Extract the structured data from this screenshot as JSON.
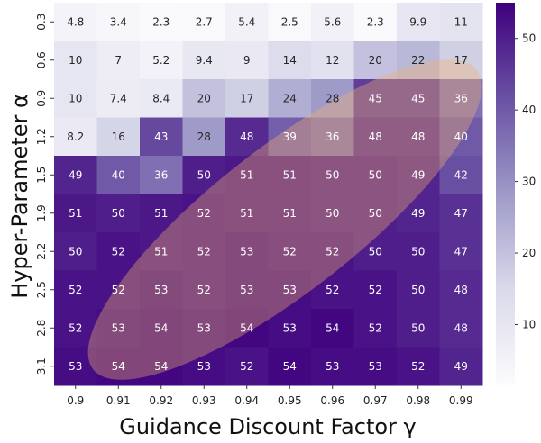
{
  "chart_data": {
    "type": "heatmap",
    "xlabel": "Guidance Discount Factor γ",
    "ylabel": "Hyper-Parameter α",
    "x": [
      "0.9",
      "0.91",
      "0.92",
      "0.93",
      "0.94",
      "0.95",
      "0.96",
      "0.97",
      "0.98",
      "0.99"
    ],
    "y": [
      "0.3",
      "0.6",
      "0.9",
      "1.2",
      "1.5",
      "1.9",
      "2.2",
      "2.5",
      "2.8",
      "3.1"
    ],
    "values": [
      [
        4.8,
        3.4,
        2.3,
        2.7,
        5.4,
        2.5,
        5.6,
        2.3,
        9.9,
        11
      ],
      [
        10,
        7,
        5.2,
        9.4,
        9,
        14,
        12,
        20,
        22,
        17
      ],
      [
        10,
        7.4,
        8.4,
        20,
        17,
        24,
        28,
        45,
        45,
        36
      ],
      [
        8.2,
        16,
        43,
        28,
        48,
        39,
        36,
        48,
        48,
        40
      ],
      [
        49,
        40,
        36,
        50,
        51,
        51,
        50,
        50,
        49,
        42
      ],
      [
        51,
        50,
        51,
        52,
        51,
        51,
        50,
        50,
        49,
        47
      ],
      [
        50,
        52,
        51,
        52,
        53,
        52,
        52,
        50,
        50,
        47
      ],
      [
        52,
        52,
        53,
        52,
        53,
        53,
        52,
        52,
        50,
        48
      ],
      [
        52,
        53,
        54,
        53,
        54,
        53,
        54,
        52,
        50,
        48
      ],
      [
        53,
        54,
        54,
        53,
        52,
        54,
        53,
        53,
        52,
        49
      ]
    ],
    "colorbar": {
      "ticks": [
        10,
        20,
        30,
        40,
        50
      ],
      "range": [
        1.5,
        55
      ]
    },
    "colormap": "Purples",
    "highlight": {
      "shape": "ellipse",
      "color": "#f0b070"
    }
  }
}
